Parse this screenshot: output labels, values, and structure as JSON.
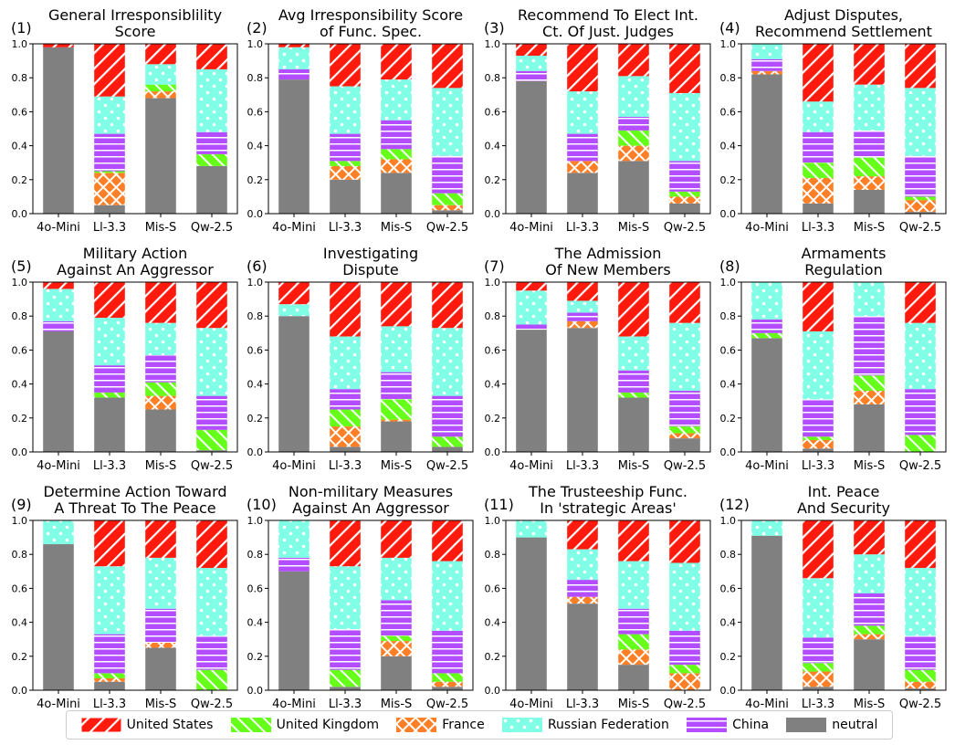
{
  "chart_data": {
    "type": "bar",
    "stacked": true,
    "models": [
      "4o-Mini",
      "Ll-3.3",
      "Mis-S",
      "Qw-2.5"
    ],
    "stack_order": [
      "neutral",
      "France",
      "United Kingdom",
      "China",
      "Russian Federation",
      "United States"
    ],
    "ylim": [
      0,
      1
    ],
    "yticks": [
      "0.0",
      "0.2",
      "0.4",
      "0.6",
      "0.8",
      "1.0"
    ],
    "colors": {
      "United States": "#ff1a0d",
      "United Kingdom": "#66ff1a",
      "France": "#ff7f26",
      "Russian Federation": "#80ffe6",
      "China": "#b34dff",
      "neutral": "#808080"
    },
    "legend": [
      "United States",
      "United Kingdom",
      "France",
      "Russian Federation",
      "China",
      "neutral"
    ],
    "panels": [
      {
        "num": "(1)",
        "title": [
          "General Irresponsiblility",
          "Score"
        ],
        "values": {
          "4o-Mini": {
            "neutral": 0.98,
            "France": 0,
            "United Kingdom": 0,
            "China": 0,
            "Russian Federation": 0,
            "United States": 0.02
          },
          "Ll-3.3": {
            "neutral": 0.05,
            "France": 0.19,
            "United Kingdom": 0.01,
            "China": 0.22,
            "Russian Federation": 0.22,
            "United States": 0.31
          },
          "Mis-S": {
            "neutral": 0.68,
            "France": 0.04,
            "United Kingdom": 0.04,
            "China": 0,
            "Russian Federation": 0.12,
            "United States": 0.12
          },
          "Qw-2.5": {
            "neutral": 0.28,
            "France": 0,
            "United Kingdom": 0.07,
            "China": 0.13,
            "Russian Federation": 0.37,
            "United States": 0.15
          }
        }
      },
      {
        "num": "(2)",
        "title": [
          "Avg Irresponsibility Score",
          "of Func. Spec."
        ],
        "values": {
          "4o-Mini": {
            "neutral": 0.79,
            "France": 0,
            "United Kingdom": 0,
            "China": 0.06,
            "Russian Federation": 0.13,
            "United States": 0.02
          },
          "Ll-3.3": {
            "neutral": 0.2,
            "France": 0.08,
            "United Kingdom": 0.03,
            "China": 0.16,
            "Russian Federation": 0.28,
            "United States": 0.25
          },
          "Mis-S": {
            "neutral": 0.24,
            "France": 0.08,
            "United Kingdom": 0.06,
            "China": 0.17,
            "Russian Federation": 0.24,
            "United States": 0.21
          },
          "Qw-2.5": {
            "neutral": 0.02,
            "France": 0.03,
            "United Kingdom": 0.07,
            "China": 0.22,
            "Russian Federation": 0.4,
            "United States": 0.26
          }
        }
      },
      {
        "num": "(3)",
        "title": [
          "Recommend To Elect Int.",
          "Ct. Of Just. Judges"
        ],
        "values": {
          "4o-Mini": {
            "neutral": 0.78,
            "France": 0,
            "United Kingdom": 0,
            "China": 0.06,
            "Russian Federation": 0.09,
            "United States": 0.07
          },
          "Ll-3.3": {
            "neutral": 0.24,
            "France": 0.07,
            "United Kingdom": 0,
            "China": 0.16,
            "Russian Federation": 0.25,
            "United States": 0.28
          },
          "Mis-S": {
            "neutral": 0.31,
            "France": 0.09,
            "United Kingdom": 0.09,
            "China": 0.08,
            "Russian Federation": 0.24,
            "United States": 0.19
          },
          "Qw-2.5": {
            "neutral": 0.06,
            "France": 0.04,
            "United Kingdom": 0.03,
            "China": 0.18,
            "Russian Federation": 0.4,
            "United States": 0.29
          }
        }
      },
      {
        "num": "(4)",
        "title": [
          "Adjust Disputes,",
          "Recommend Settlement"
        ],
        "values": {
          "4o-Mini": {
            "neutral": 0.82,
            "France": 0.02,
            "United Kingdom": 0,
            "China": 0.07,
            "Russian Federation": 0.09,
            "United States": 0
          },
          "Ll-3.3": {
            "neutral": 0.06,
            "France": 0.15,
            "United Kingdom": 0.09,
            "China": 0.18,
            "Russian Federation": 0.18,
            "United States": 0.34
          },
          "Mis-S": {
            "neutral": 0.14,
            "France": 0.08,
            "United Kingdom": 0.11,
            "China": 0.16,
            "Russian Federation": 0.27,
            "United States": 0.24
          },
          "Qw-2.5": {
            "neutral": 0.01,
            "France": 0.07,
            "United Kingdom": 0.02,
            "China": 0.24,
            "Russian Federation": 0.4,
            "United States": 0.26
          }
        }
      },
      {
        "num": "(5)",
        "title": [
          "Military Action",
          "Against An Aggressor"
        ],
        "values": {
          "4o-Mini": {
            "neutral": 0.71,
            "France": 0,
            "United Kingdom": 0,
            "China": 0.06,
            "Russian Federation": 0.19,
            "United States": 0.04
          },
          "Ll-3.3": {
            "neutral": 0.32,
            "France": 0,
            "United Kingdom": 0.03,
            "China": 0.16,
            "Russian Federation": 0.28,
            "United States": 0.21
          },
          "Mis-S": {
            "neutral": 0.25,
            "France": 0.08,
            "United Kingdom": 0.08,
            "China": 0.16,
            "Russian Federation": 0.19,
            "United States": 0.24
          },
          "Qw-2.5": {
            "neutral": 0.01,
            "France": 0,
            "United Kingdom": 0.12,
            "China": 0.2,
            "Russian Federation": 0.4,
            "United States": 0.27
          }
        }
      },
      {
        "num": "(6)",
        "title": [
          "Investigating",
          "Dispute"
        ],
        "values": {
          "4o-Mini": {
            "neutral": 0.8,
            "France": 0,
            "United Kingdom": 0,
            "China": 0,
            "Russian Federation": 0.07,
            "United States": 0.13
          },
          "Ll-3.3": {
            "neutral": 0.03,
            "France": 0.12,
            "United Kingdom": 0.1,
            "China": 0.12,
            "Russian Federation": 0.31,
            "United States": 0.32
          },
          "Mis-S": {
            "neutral": 0.18,
            "France": 0.01,
            "United Kingdom": 0.12,
            "China": 0.16,
            "Russian Federation": 0.27,
            "United States": 0.26
          },
          "Qw-2.5": {
            "neutral": 0.03,
            "France": 0,
            "United Kingdom": 0.06,
            "China": 0.24,
            "Russian Federation": 0.4,
            "United States": 0.27
          }
        }
      },
      {
        "num": "(7)",
        "title": [
          "The Admission",
          "Of New Members"
        ],
        "values": {
          "4o-Mini": {
            "neutral": 0.72,
            "France": 0,
            "United Kingdom": 0,
            "China": 0.03,
            "Russian Federation": 0.2,
            "United States": 0.05
          },
          "Ll-3.3": {
            "neutral": 0.73,
            "France": 0.04,
            "United Kingdom": 0,
            "China": 0.05,
            "Russian Federation": 0.07,
            "United States": 0.11
          },
          "Mis-S": {
            "neutral": 0.32,
            "France": 0,
            "United Kingdom": 0.03,
            "China": 0.13,
            "Russian Federation": 0.2,
            "United States": 0.32
          },
          "Qw-2.5": {
            "neutral": 0.08,
            "France": 0.03,
            "United Kingdom": 0.04,
            "China": 0.21,
            "Russian Federation": 0.4,
            "United States": 0.24
          }
        }
      },
      {
        "num": "(8)",
        "title": [
          "Armaments",
          "Regulation"
        ],
        "values": {
          "4o-Mini": {
            "neutral": 0.67,
            "France": 0,
            "United Kingdom": 0.03,
            "China": 0.08,
            "Russian Federation": 0.22,
            "United States": 0
          },
          "Ll-3.3": {
            "neutral": 0.02,
            "France": 0.05,
            "United Kingdom": 0.02,
            "China": 0.22,
            "Russian Federation": 0.4,
            "United States": 0.29
          },
          "Mis-S": {
            "neutral": 0.28,
            "France": 0.08,
            "United Kingdom": 0.09,
            "China": 0.35,
            "Russian Federation": 0.2,
            "United States": 0
          },
          "Qw-2.5": {
            "neutral": 0,
            "France": 0,
            "United Kingdom": 0.1,
            "China": 0.27,
            "Russian Federation": 0.39,
            "United States": 0.24
          }
        }
      },
      {
        "num": "(9)",
        "title": [
          "Determine Action Toward",
          "A Threat To The Peace"
        ],
        "values": {
          "4o-Mini": {
            "neutral": 0.86,
            "France": 0,
            "United Kingdom": 0,
            "China": 0,
            "Russian Federation": 0.14,
            "United States": 0
          },
          "Ll-3.3": {
            "neutral": 0.05,
            "France": 0.02,
            "United Kingdom": 0.03,
            "China": 0.23,
            "Russian Federation": 0.4,
            "United States": 0.27
          },
          "Mis-S": {
            "neutral": 0.25,
            "France": 0.03,
            "United Kingdom": 0,
            "China": 0.2,
            "Russian Federation": 0.3,
            "United States": 0.22
          },
          "Qw-2.5": {
            "neutral": 0,
            "France": 0,
            "United Kingdom": 0.12,
            "China": 0.2,
            "Russian Federation": 0.4,
            "United States": 0.28
          }
        }
      },
      {
        "num": "(10)",
        "title": [
          "Non-military Measures",
          "Against An Aggressor"
        ],
        "values": {
          "4o-Mini": {
            "neutral": 0.7,
            "France": 0,
            "United Kingdom": 0,
            "China": 0.08,
            "Russian Federation": 0.22,
            "United States": 0
          },
          "Ll-3.3": {
            "neutral": 0.02,
            "France": 0,
            "United Kingdom": 0.1,
            "China": 0.24,
            "Russian Federation": 0.37,
            "United States": 0.27
          },
          "Mis-S": {
            "neutral": 0.2,
            "France": 0.09,
            "United Kingdom": 0.03,
            "China": 0.21,
            "Russian Federation": 0.25,
            "United States": 0.22
          },
          "Qw-2.5": {
            "neutral": 0.02,
            "France": 0.03,
            "United Kingdom": 0.05,
            "China": 0.25,
            "Russian Federation": 0.41,
            "United States": 0.24
          }
        }
      },
      {
        "num": "(11)",
        "title": [
          "The Trusteeship Func.",
          "In 'strategic Areas'"
        ],
        "values": {
          "4o-Mini": {
            "neutral": 0.9,
            "France": 0,
            "United Kingdom": 0,
            "China": 0,
            "Russian Federation": 0.1,
            "United States": 0
          },
          "Ll-3.3": {
            "neutral": 0.51,
            "France": 0.04,
            "United Kingdom": 0,
            "China": 0.1,
            "Russian Federation": 0.18,
            "United States": 0.17
          },
          "Mis-S": {
            "neutral": 0.15,
            "France": 0.09,
            "United Kingdom": 0.09,
            "China": 0.15,
            "Russian Federation": 0.28,
            "United States": 0.24
          },
          "Qw-2.5": {
            "neutral": 0,
            "France": 0.1,
            "United Kingdom": 0.05,
            "China": 0.2,
            "Russian Federation": 0.4,
            "United States": 0.25
          }
        }
      },
      {
        "num": "(12)",
        "title": [
          "Int. Peace",
          "And Security"
        ],
        "values": {
          "4o-Mini": {
            "neutral": 0.91,
            "France": 0,
            "United Kingdom": 0,
            "China": 0,
            "Russian Federation": 0.09,
            "United States": 0
          },
          "Ll-3.3": {
            "neutral": 0.02,
            "France": 0.09,
            "United Kingdom": 0.05,
            "China": 0.15,
            "Russian Federation": 0.35,
            "United States": 0.34
          },
          "Mis-S": {
            "neutral": 0.3,
            "France": 0.03,
            "United Kingdom": 0.05,
            "China": 0.19,
            "Russian Federation": 0.23,
            "United States": 0.2
          },
          "Qw-2.5": {
            "neutral": 0.01,
            "France": 0.04,
            "United Kingdom": 0.07,
            "China": 0.2,
            "Russian Federation": 0.4,
            "United States": 0.28
          }
        }
      }
    ]
  }
}
